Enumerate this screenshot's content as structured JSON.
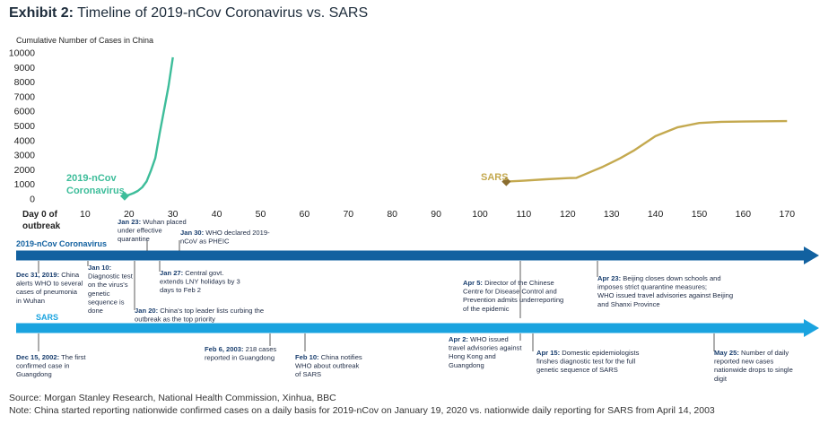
{
  "title": {
    "exhibit": "Exhibit 2:",
    "text": "Timeline of 2019-nCov Coronavirus vs. SARS"
  },
  "colors": {
    "ncov": "#3dbd9a",
    "sars": "#c4a94f",
    "sars_marker": "#8a6d2f",
    "ncov_arrow": "#1261a0",
    "sars_arrow": "#1aa3df",
    "text_blue": "#1a3f6f"
  },
  "chart_data": {
    "type": "line",
    "ylabel": "Cumulative Number of Cases in China",
    "ylim": [
      0,
      10000
    ],
    "yticks": [
      0,
      1000,
      2000,
      3000,
      4000,
      5000,
      6000,
      7000,
      8000,
      9000,
      10000
    ],
    "ytick_labels": [
      "0",
      "1000",
      "2000",
      "3000",
      "4000",
      "5000",
      "6000",
      "7000",
      "8000",
      "9000",
      "10000"
    ],
    "xlim": [
      0,
      170
    ],
    "xticks": [
      10,
      20,
      30,
      40,
      50,
      60,
      70,
      80,
      90,
      100,
      110,
      120,
      130,
      140,
      150,
      160,
      170
    ],
    "xtick_labels": [
      "10",
      "20",
      "30",
      "40",
      "50",
      "60",
      "70",
      "80",
      "90",
      "100",
      "110",
      "120",
      "130",
      "140",
      "150",
      "160",
      "170"
    ],
    "x0_label": [
      "Day 0 of",
      "outbreak"
    ],
    "series": [
      {
        "name": "2019-nCov Coronavirus",
        "label_lines": [
          "2019-nCov",
          "Coronavirus"
        ],
        "x": [
          19,
          20,
          21,
          22,
          23,
          24,
          25,
          26,
          27,
          28,
          29,
          30
        ],
        "y": [
          200,
          280,
          400,
          550,
          800,
          1200,
          1950,
          2800,
          4500,
          6100,
          7700,
          9700
        ]
      },
      {
        "name": "SARS",
        "label_lines": [
          "SARS"
        ],
        "x": [
          106,
          110,
          115,
          120,
          122,
          124,
          126,
          128,
          130,
          132,
          135,
          140,
          145,
          150,
          155,
          160,
          165,
          170
        ],
        "y": [
          1190,
          1250,
          1350,
          1430,
          1450,
          1700,
          1950,
          2200,
          2500,
          2800,
          3300,
          4300,
          4900,
          5200,
          5280,
          5300,
          5320,
          5330
        ]
      }
    ]
  },
  "timelines": {
    "ncov": {
      "label": "2019-nCov Coronavirus",
      "events": [
        {
          "day": 0,
          "side": "below",
          "date": "Dec 31, 2019:",
          "lines": [
            "Dec 31, 2019: China",
            "alerts WHO to several",
            "cases of pneumonia",
            "in Wuhan"
          ]
        },
        {
          "day": 10,
          "side": "below",
          "date": "Jan 10:",
          "lines": [
            "Jan 10:",
            "Diagnostic test",
            "on the virus's",
            "genetic",
            "sequence is",
            "done"
          ]
        },
        {
          "day": 23,
          "side": "above",
          "date": "Jan 23:",
          "lines": [
            "Jan 23: Wuhan placed",
            "under effective",
            "quarantine"
          ]
        },
        {
          "day": 27,
          "side": "below",
          "date": "Jan 27:",
          "lines": [
            "Jan 27: Central govt.",
            "extends LNY holidays by 3",
            "days to Feb 2"
          ]
        },
        {
          "day": 20,
          "side": "below",
          "date": "Jan 20:",
          "lines": [
            "Jan 20: China's top leader lists curbing the",
            "outbreak as the top priority"
          ]
        },
        {
          "day": 30,
          "side": "above",
          "date": "Jan 30:",
          "lines": [
            "Jan 30: WHO declared 2019-",
            "nCoV as PHEIC"
          ]
        },
        {
          "day": 108,
          "side": "above",
          "date": "Apr 5:",
          "lines": [
            "Apr 5: Director of the Chinese",
            "Centre for Disease Control and",
            "Prevention admits underreporting",
            "of the epidemic"
          ]
        },
        {
          "day": 135,
          "side": "above",
          "date": "Apr 23:",
          "lines": [
            "Apr 23: Beijing closes down schools and",
            "imposes strict quarantine measures;",
            "WHO issued travel advisories against Beijing",
            "and Shanxi Province"
          ]
        }
      ]
    },
    "sars": {
      "label": "SARS",
      "events": [
        {
          "day": 0,
          "side": "below",
          "date": "Dec 15, 2002:",
          "lines": [
            "Dec 15, 2002: The first",
            "confirmed case in",
            "Guangdong"
          ]
        },
        {
          "day": 53,
          "side": "below",
          "date": "Feb 6, 2003:",
          "lines": [
            "Feb 6, 2003: 218 cases",
            "reported in Guangdong"
          ]
        },
        {
          "day": 60,
          "side": "below",
          "date": "Feb 10:",
          "lines": [
            "Feb 10: China notifies",
            "WHO about outbreak",
            "of SARS"
          ]
        },
        {
          "day": 106,
          "side": "above",
          "date": "Apr 2:",
          "lines": [
            "Apr 2: WHO issued",
            "travel advisories against",
            "Hong Kong and",
            "Guangdong"
          ]
        },
        {
          "day": 112,
          "side": "below",
          "date": "Apr 15:",
          "lines": [
            "Apr 15: Domestic epidemiologists",
            "finshes  diagnostic test for the full",
            "genetic sequence of SARS"
          ]
        },
        {
          "day": 160,
          "side": "below",
          "date": "May 25:",
          "lines": [
            "May 25: Number of daily",
            "reported new cases",
            "nationwide drops to single",
            "digit"
          ]
        }
      ]
    }
  },
  "source": "Source: Morgan Stanley Research, National Health Commission, Xinhua, BBC",
  "note": "Note: China started reporting nationwide confirmed cases on a daily basis for 2019-nCov on January 19, 2020 vs. nationwide daily reporting for SARS from April 14, 2003"
}
